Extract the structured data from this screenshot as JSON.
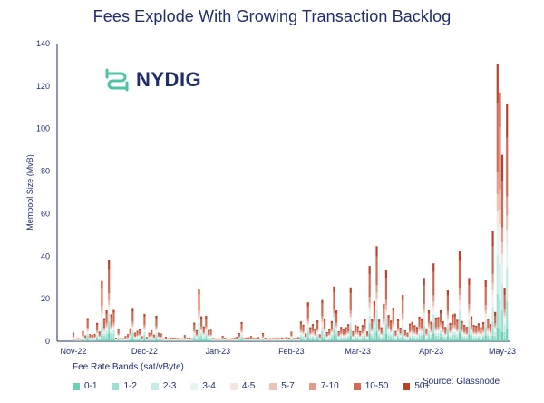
{
  "title": "Fees Explode With Growing Transaction Backlog",
  "logo_text": "NYDIG",
  "source": "Source: Glassnode",
  "legend_title": "Fee Rate Bands (sat/vByte)",
  "colors": {
    "title": "#1f2d6b",
    "logo_icon": "#4fc3a6",
    "axis": "#1f2d6b"
  },
  "chart_data": {
    "type": "bar",
    "stacked": true,
    "title": "Fees Explode With Growing Transaction Backlog",
    "ylabel": "Mempool Size (MvB)",
    "xlabel": "",
    "ylim": [
      0,
      140
    ],
    "yticks": [
      0,
      20,
      40,
      60,
      80,
      100,
      120,
      140
    ],
    "xticks": [
      "Nov-22",
      "Dec-22",
      "Jan-23",
      "Feb-23",
      "Mar-23",
      "Apr-23",
      "May-23"
    ],
    "x_range": [
      "2022-11-01",
      "2023-05-01"
    ],
    "legend_title": "Fee Rate Bands (sat/vByte)",
    "legend_position": "bottom",
    "series": [
      {
        "name": "0-1",
        "color": "#6fcfb4"
      },
      {
        "name": "1-2",
        "color": "#9fdfd3"
      },
      {
        "name": "2-3",
        "color": "#c6ebe6"
      },
      {
        "name": "3-4",
        "color": "#e6f5f2"
      },
      {
        "name": "4-5",
        "color": "#f5e6e2"
      },
      {
        "name": "5-7",
        "color": "#ebc3b8"
      },
      {
        "name": "7-10",
        "color": "#df9e8d"
      },
      {
        "name": "10-50",
        "color": "#cf6b55"
      },
      {
        "name": "50+",
        "color": "#b5432a"
      }
    ],
    "totals_by_date": [
      {
        "date": "2022-11-01",
        "value": 4
      },
      {
        "date": "2022-11-07",
        "value": 10
      },
      {
        "date": "2022-11-13",
        "value": 25
      },
      {
        "date": "2022-11-16",
        "value": 42
      },
      {
        "date": "2022-11-20",
        "value": 6
      },
      {
        "date": "2022-11-26",
        "value": 14
      },
      {
        "date": "2022-12-01",
        "value": 13
      },
      {
        "date": "2022-12-06",
        "value": 12
      },
      {
        "date": "2022-12-10",
        "value": 2
      },
      {
        "date": "2022-12-18",
        "value": 3
      },
      {
        "date": "2022-12-24",
        "value": 25
      },
      {
        "date": "2023-01-03",
        "value": 3
      },
      {
        "date": "2023-01-11",
        "value": 10
      },
      {
        "date": "2023-01-20",
        "value": 4
      },
      {
        "date": "2023-02-01",
        "value": 4
      },
      {
        "date": "2023-02-08",
        "value": 18
      },
      {
        "date": "2023-02-14",
        "value": 20
      },
      {
        "date": "2023-02-19",
        "value": 30
      },
      {
        "date": "2023-02-26",
        "value": 23
      },
      {
        "date": "2023-03-06",
        "value": 33
      },
      {
        "date": "2023-03-09",
        "value": 46
      },
      {
        "date": "2023-03-13",
        "value": 39
      },
      {
        "date": "2023-03-20",
        "value": 20
      },
      {
        "date": "2023-03-29",
        "value": 29
      },
      {
        "date": "2023-04-02",
        "value": 36
      },
      {
        "date": "2023-04-08",
        "value": 27
      },
      {
        "date": "2023-04-13",
        "value": 38
      },
      {
        "date": "2023-04-17",
        "value": 26
      },
      {
        "date": "2023-04-24",
        "value": 28
      },
      {
        "date": "2023-04-27",
        "value": 52
      },
      {
        "date": "2023-04-29",
        "value": 126
      },
      {
        "date": "2023-04-30",
        "value": 133
      },
      {
        "date": "2023-05-01",
        "value": 100
      },
      {
        "date": "2023-05-03",
        "value": 106
      }
    ]
  }
}
